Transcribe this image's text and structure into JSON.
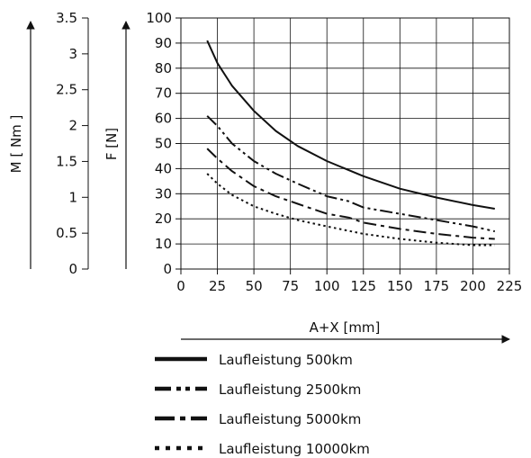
{
  "chart_data": {
    "type": "line",
    "xlabel": "A+X [mm]",
    "ylabel_force": "F [N]",
    "ylabel_moment": "M [ Nm ]",
    "x_ticks": [
      "0",
      "25",
      "50",
      "75",
      "100",
      "125",
      "150",
      "175",
      "200",
      "225"
    ],
    "xlim": [
      0,
      225
    ],
    "y_ticks_force": [
      "0",
      "10",
      "20",
      "30",
      "40",
      "50",
      "60",
      "70",
      "80",
      "90",
      "100"
    ],
    "ylim_force": [
      0,
      100
    ],
    "y_ticks_moment": [
      "0",
      "0.5",
      "1",
      "1.5",
      "2",
      "2.5",
      "3",
      "3.5"
    ],
    "ylim_moment": [
      0,
      3.5
    ],
    "grid": true,
    "legend_position": "below",
    "series": [
      {
        "name": "Laufleistung 500km",
        "dash": "solid",
        "x": [
          18,
          25,
          35,
          50,
          65,
          80,
          100,
          125,
          150,
          175,
          200,
          215
        ],
        "y": [
          91,
          82,
          73,
          63,
          55,
          49,
          43,
          37,
          32,
          28.5,
          25.5,
          24
        ]
      },
      {
        "name": "Laufleistung 2500km",
        "dash": "dashdotdot",
        "x": [
          18,
          25,
          35,
          50,
          65,
          80,
          100,
          115,
          125,
          150,
          175,
          200,
          215
        ],
        "y": [
          61,
          57,
          50,
          43,
          38,
          34,
          29,
          27,
          24.5,
          22,
          19.5,
          17,
          15
        ]
      },
      {
        "name": "Laufleistung 5000km",
        "dash": "dashdot",
        "x": [
          18,
          25,
          35,
          50,
          65,
          80,
          100,
          115,
          125,
          150,
          175,
          200,
          215
        ],
        "y": [
          48,
          44,
          39,
          33,
          29,
          26,
          22,
          20.5,
          18.5,
          16,
          14,
          12.5,
          12
        ]
      },
      {
        "name": "Laufleistung 10000km",
        "dash": "dotted",
        "x": [
          18,
          25,
          35,
          50,
          65,
          80,
          100,
          125,
          150,
          175,
          200,
          215
        ],
        "y": [
          38,
          34,
          29.5,
          25,
          22,
          19.5,
          17,
          14,
          12,
          10.5,
          9.5,
          9.5
        ]
      }
    ]
  }
}
